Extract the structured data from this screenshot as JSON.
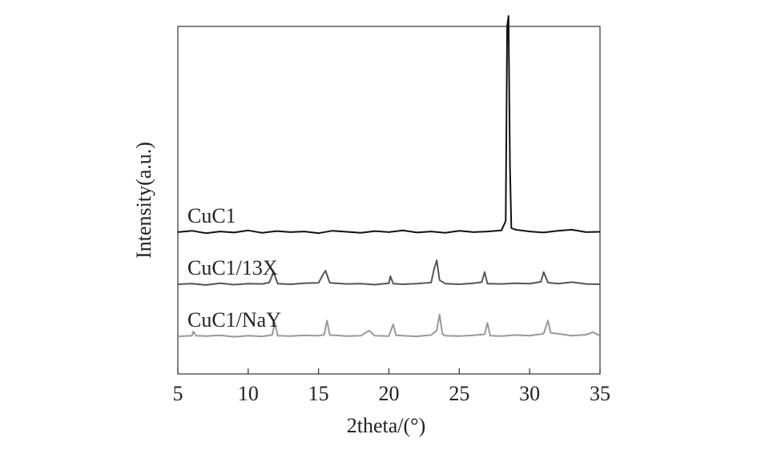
{
  "chart_data": {
    "type": "line",
    "xlabel": "2theta/(°)",
    "ylabel": "Intensity(a.u.)",
    "xlim": [
      5,
      35
    ],
    "xticks": [
      5,
      10,
      15,
      20,
      25,
      30,
      35
    ],
    "ylim": [
      0,
      100
    ],
    "series": [
      {
        "name": "CuC1",
        "color": "#111111",
        "x": [
          5,
          6,
          7,
          8,
          9,
          10,
          11,
          12,
          13,
          14,
          15,
          16,
          17,
          18,
          19,
          20,
          21,
          22,
          23,
          24,
          25,
          26,
          27,
          28,
          28.3,
          28.4,
          28.5,
          28.6,
          28.7,
          29,
          30,
          31,
          32,
          33,
          34,
          35
        ],
        "values": [
          40.8,
          41.2,
          40.5,
          41.0,
          40.7,
          41.3,
          40.6,
          41.1,
          40.8,
          41.0,
          40.5,
          41.2,
          40.9,
          40.6,
          41.1,
          40.8,
          41.3,
          40.7,
          41.0,
          40.6,
          41.2,
          40.8,
          41.0,
          41.3,
          44,
          100,
          103,
          60,
          42,
          41.5,
          41.0,
          40.7,
          41.2,
          41.5,
          40.8,
          40.9
        ]
      },
      {
        "name": "CuC1/13X",
        "color": "#555555",
        "x": [
          5,
          6,
          7,
          8,
          9,
          10,
          11,
          11.5,
          11.8,
          12.1,
          13,
          14,
          15,
          15.3,
          15.5,
          15.8,
          17,
          18,
          19,
          20,
          20.1,
          20.3,
          21,
          22,
          23,
          23.2,
          23.4,
          23.6,
          24,
          25,
          26,
          26.6,
          26.8,
          27,
          28,
          29,
          30,
          30.8,
          31.0,
          31.3,
          32,
          33,
          34,
          35
        ],
        "values": [
          25.8,
          26.0,
          25.6,
          26.1,
          25.7,
          26.0,
          25.9,
          26.3,
          29.3,
          26.0,
          25.8,
          26.1,
          26.2,
          28.5,
          29.7,
          26.2,
          25.9,
          26.0,
          25.7,
          26.1,
          28.1,
          26.0,
          25.8,
          26.0,
          26.3,
          30,
          32.7,
          27,
          26.0,
          25.8,
          26.1,
          26.4,
          29.3,
          26.0,
          25.9,
          26.1,
          26.0,
          26.5,
          29.3,
          26.3,
          26.0,
          26.4,
          25.9,
          25.8
        ]
      },
      {
        "name": "CuC1/NaY",
        "color": "#999999",
        "x": [
          5,
          6,
          6.1,
          6.3,
          7,
          8,
          9,
          10,
          11,
          11.7,
          11.9,
          12.1,
          13,
          14,
          15,
          15.4,
          15.6,
          15.8,
          17,
          18,
          18.6,
          19,
          20,
          20.3,
          20.5,
          21,
          22,
          23,
          23.4,
          23.6,
          23.8,
          24,
          25,
          26,
          26.8,
          27.0,
          27.2,
          28,
          29,
          30,
          31,
          31.3,
          31.5,
          32,
          33,
          34,
          34.5,
          35
        ],
        "values": [
          10.8,
          11.0,
          12.2,
          11.0,
          10.9,
          11.1,
          10.7,
          11.0,
          10.8,
          11.2,
          14.7,
          11.0,
          10.9,
          11.1,
          11.0,
          11.3,
          15.4,
          11.2,
          10.9,
          11.0,
          12.5,
          11.0,
          10.9,
          14.3,
          11.1,
          11.0,
          10.8,
          11.2,
          12.5,
          17.1,
          11.5,
          11.0,
          10.9,
          11.1,
          11.4,
          14.7,
          11.0,
          10.9,
          11.2,
          11.0,
          11.6,
          15.4,
          11.8,
          11.6,
          11.0,
          11.3,
          12.0,
          11.0
        ]
      }
    ]
  }
}
